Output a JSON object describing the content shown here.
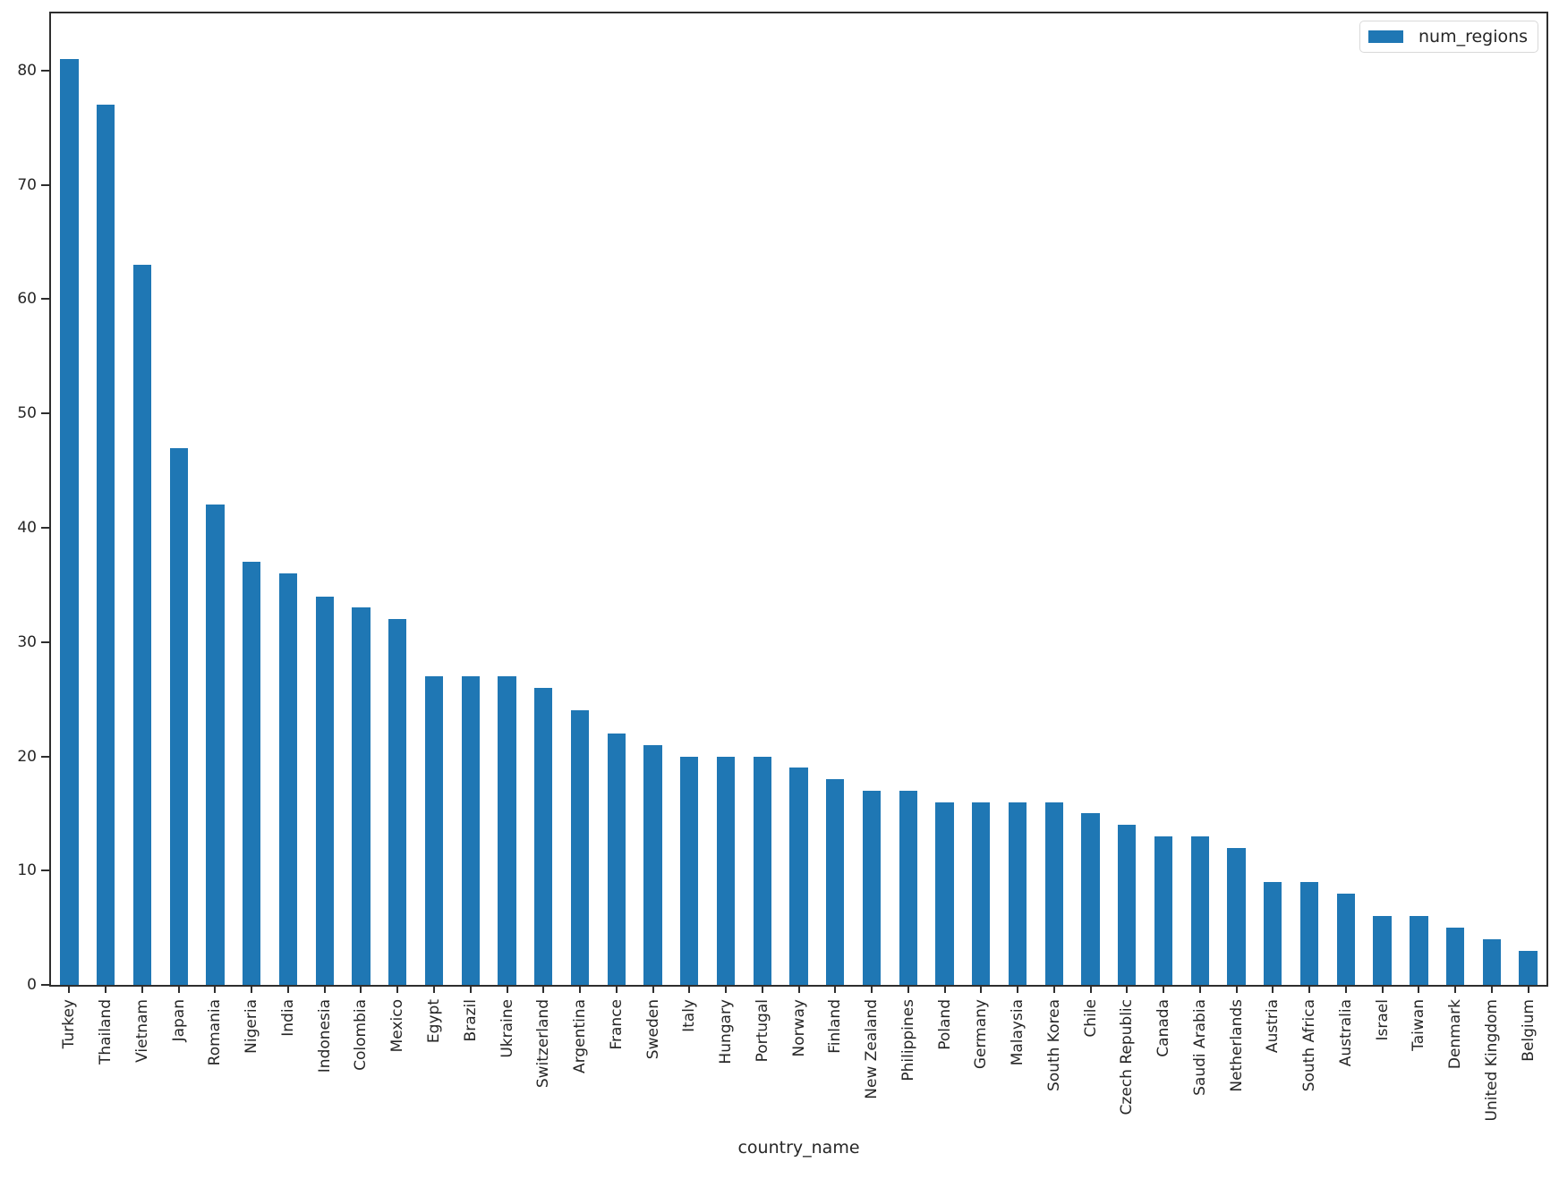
{
  "chart_data": {
    "type": "bar",
    "title": "",
    "xlabel": "country_name",
    "ylabel": "",
    "categories": [
      "Turkey",
      "Thailand",
      "Vietnam",
      "Japan",
      "Romania",
      "Nigeria",
      "India",
      "Indonesia",
      "Colombia",
      "Mexico",
      "Egypt",
      "Brazil",
      "Ukraine",
      "Switzerland",
      "Argentina",
      "France",
      "Sweden",
      "Italy",
      "Hungary",
      "Portugal",
      "Norway",
      "Finland",
      "New Zealand",
      "Philippines",
      "Poland",
      "Germany",
      "Malaysia",
      "South Korea",
      "Chile",
      "Czech Republic",
      "Canada",
      "Saudi Arabia",
      "Netherlands",
      "Austria",
      "South Africa",
      "Australia",
      "Israel",
      "Taiwan",
      "Denmark",
      "United Kingdom",
      "Belgium"
    ],
    "series": [
      {
        "name": "num_regions",
        "values": [
          81,
          77,
          63,
          47,
          42,
          37,
          36,
          34,
          33,
          32,
          27,
          27,
          27,
          26,
          24,
          22,
          21,
          20,
          20,
          20,
          19,
          18,
          17,
          17,
          16,
          16,
          16,
          16,
          15,
          14,
          13,
          13,
          12,
          9,
          9,
          8,
          6,
          6,
          5,
          4,
          3
        ]
      }
    ],
    "ylim": [
      0,
      85
    ],
    "yticks": [
      0,
      10,
      20,
      30,
      40,
      50,
      60,
      70,
      80
    ],
    "grid": false,
    "legend": {
      "position": "upper right",
      "entries": [
        "num_regions"
      ]
    },
    "bar_color": "#1f77b4",
    "axis_color": "#2e2e2e",
    "tick_label_color": "#262626",
    "x_tick_rotation_deg": 90
  }
}
